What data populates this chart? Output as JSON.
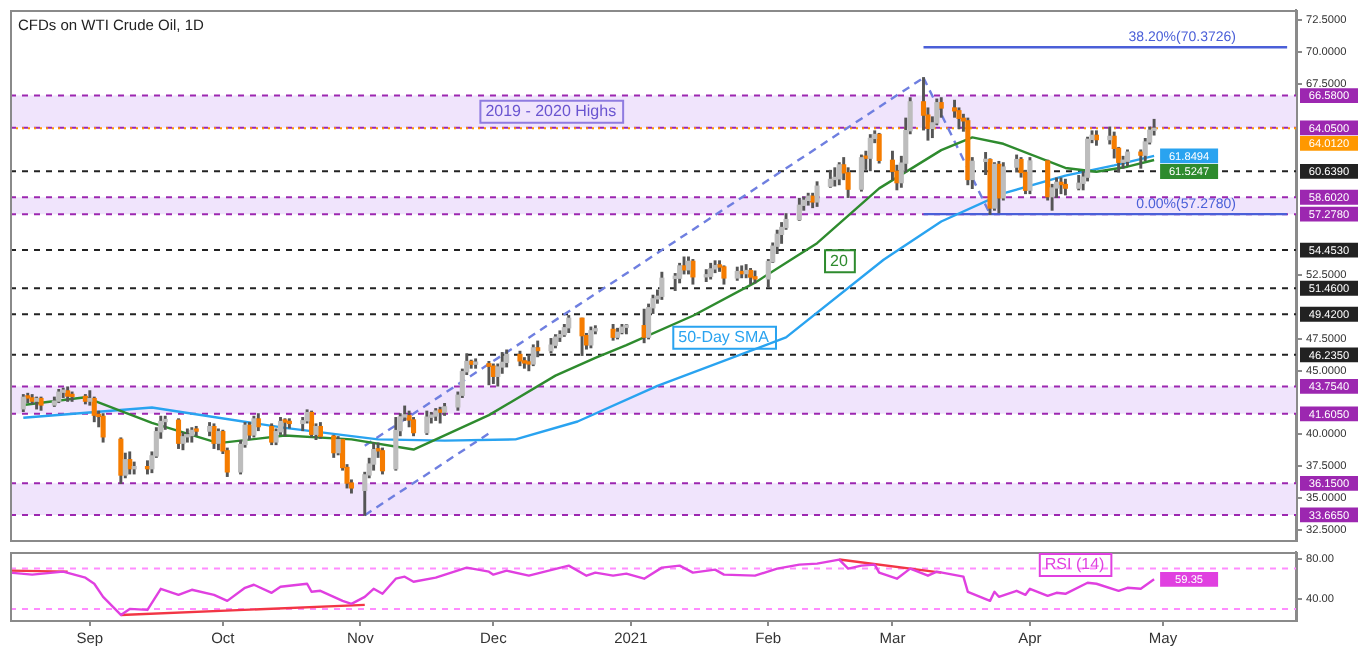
{
  "chart_data": [
    {
      "type": "candlestick",
      "title": "CFDs on WTI Crude Oil, 1D",
      "xlim": [
        "2020-08-14",
        "2021-05-31"
      ],
      "ylim": [
        31.7,
        73.3
      ],
      "tick_labels": "y",
      "grid": false,
      "legend": false,
      "marker": "none",
      "yticks": [
        {
          "value": 72.5,
          "label": "72.5000"
        },
        {
          "value": 70,
          "label": "70.0000"
        },
        {
          "value": 67.5,
          "label": "67.5000"
        },
        {
          "value": 52.5,
          "label": "52.5000"
        },
        {
          "value": 47.5,
          "label": "47.5000"
        },
        {
          "value": 45,
          "label": "45.0000"
        },
        {
          "value": 40,
          "label": "40.0000"
        },
        {
          "value": 37.5,
          "label": "37.5000"
        },
        {
          "value": 35,
          "label": "35.0000"
        },
        {
          "value": 32.5,
          "label": "32.5000"
        }
      ],
      "series": [
        {
          "color": "#bdbdbd",
          "x": [
            "2020-08-17",
            "2020-08-20",
            "2020-08-24",
            "2020-08-25",
            "2020-08-26",
            "2020-09-01",
            "2020-09-09",
            "2020-09-11",
            "2020-09-15",
            "2020-09-16",
            "2020-09-17",
            "2020-09-18",
            "2020-09-22",
            "2020-09-23",
            "2020-09-24",
            "2020-09-28",
            "2020-09-30",
            "2020-10-05",
            "2020-10-06",
            "2020-10-08",
            "2020-10-13",
            "2020-10-14",
            "2020-10-19",
            "2020-10-20",
            "2020-10-22",
            "2020-10-27",
            "2020-11-02",
            "2020-11-03",
            "2020-11-04",
            "2020-11-09",
            "2020-11-10",
            "2020-11-11",
            "2020-11-16",
            "2020-11-17",
            "2020-11-18",
            "2020-11-20",
            "2020-11-23",
            "2020-11-24",
            "2020-11-25",
            "2020-11-27",
            "2020-12-02",
            "2020-12-03",
            "2020-12-04",
            "2020-12-10",
            "2020-12-14",
            "2020-12-15",
            "2020-12-16",
            "2020-12-17",
            "2020-12-18",
            "2020-12-23",
            "2020-12-24",
            "2020-12-29",
            "2020-12-30",
            "2020-12-31",
            "2021-01-05",
            "2021-01-06",
            "2021-01-07",
            "2021-01-08",
            "2021-01-11",
            "2021-01-12",
            "2021-01-14",
            "2021-01-18",
            "2021-01-19",
            "2021-01-20",
            "2021-01-25",
            "2021-01-27",
            "2021-02-01",
            "2021-02-02",
            "2021-02-03",
            "2021-02-04",
            "2021-02-05",
            "2021-02-08",
            "2021-02-09",
            "2021-02-10",
            "2021-02-12",
            "2021-02-15",
            "2021-02-16",
            "2021-02-17",
            "2021-02-22",
            "2021-02-24",
            "2021-02-25",
            "2021-03-03",
            "2021-03-04",
            "2021-03-05",
            "2021-03-10",
            "2021-03-11",
            "2021-03-19",
            "2021-03-22",
            "2021-03-24",
            "2021-03-26",
            "2021-03-29",
            "2021-04-01",
            "2021-04-06",
            "2021-04-07",
            "2021-04-12",
            "2021-04-13",
            "2021-04-14",
            "2021-04-15",
            "2021-04-19",
            "2021-04-22",
            "2021-04-23",
            "2021-04-27",
            "2021-04-28",
            "2021-04-29"
          ],
          "ohlc": [
            [
              42.0,
              43.1,
              41.8,
              42.9
            ],
            [
              42.6,
              42.9,
              42.0,
              42.8
            ],
            [
              42.3,
              42.9,
              42.2,
              42.6
            ],
            [
              42.6,
              43.5,
              42.5,
              43.3
            ],
            [
              43.3,
              43.6,
              42.9,
              43.4
            ],
            [
              42.6,
              43.4,
              42.3,
              42.8
            ],
            [
              36.8,
              38.5,
              36.6,
              38.0
            ],
            [
              37.3,
              37.8,
              36.9,
              37.35
            ],
            [
              37.3,
              38.6,
              37.0,
              38.3
            ],
            [
              38.3,
              40.5,
              38.2,
              40.2
            ],
            [
              40.2,
              41.4,
              39.7,
              41.0
            ],
            [
              41.0,
              41.4,
              40.4,
              41.1
            ],
            [
              39.3,
              40.1,
              38.8,
              39.8
            ],
            [
              39.8,
              40.4,
              39.4,
              39.9
            ],
            [
              39.9,
              40.5,
              39.4,
              40.3
            ],
            [
              40.25,
              40.9,
              39.9,
              40.6
            ],
            [
              39.3,
              40.4,
              38.8,
              40.2
            ],
            [
              37.05,
              39.5,
              36.9,
              39.2
            ],
            [
              39.2,
              40.9,
              39.0,
              40.7
            ],
            [
              39.95,
              41.4,
              39.8,
              41.2
            ],
            [
              39.4,
              40.4,
              39.2,
              40.2
            ],
            [
              40.2,
              41.3,
              40.0,
              41.0
            ],
            [
              40.85,
              41.3,
              40.3,
              41.06
            ],
            [
              41.06,
              41.9,
              40.9,
              41.7
            ],
            [
              40.0,
              40.8,
              39.6,
              40.6
            ],
            [
              38.56,
              39.8,
              38.4,
              39.57
            ],
            [
              35.6,
              37.0,
              33.65,
              36.81
            ],
            [
              36.81,
              38.1,
              36.6,
              37.66
            ],
            [
              37.66,
              39.3,
              37.2,
              38.79
            ],
            [
              37.3,
              41.3,
              37.2,
              40.29
            ],
            [
              40.29,
              41.6,
              39.9,
              41.36
            ],
            [
              41.36,
              42.2,
              41.1,
              41.45
            ],
            [
              40.13,
              41.8,
              40.0,
              41.34
            ],
            [
              41.34,
              41.7,
              40.9,
              41.43
            ],
            [
              41.43,
              42.0,
              41.1,
              41.82
            ],
            [
              41.74,
              42.4,
              41.5,
              42.15
            ],
            [
              42.15,
              43.3,
              41.9,
              43.06
            ],
            [
              43.06,
              45.1,
              42.9,
              44.91
            ],
            [
              44.91,
              46.3,
              44.7,
              45.71
            ],
            [
              45.5,
              45.9,
              45.2,
              45.53
            ],
            [
              44.55,
              45.5,
              43.8,
              45.28
            ],
            [
              45.28,
              46.4,
              44.8,
              45.64
            ],
            [
              45.64,
              46.6,
              45.3,
              46.26
            ],
            [
              45.52,
              47.0,
              45.4,
              46.78
            ],
            [
              46.57,
              47.5,
              46.4,
              46.99
            ],
            [
              46.99,
              47.8,
              46.8,
              47.62
            ],
            [
              47.62,
              48.1,
              47.3,
              47.82
            ],
            [
              47.82,
              48.6,
              47.7,
              48.36
            ],
            [
              48.36,
              49.3,
              48.0,
              49.1
            ],
            [
              47.02,
              48.4,
              46.8,
              48.12
            ],
            [
              48.12,
              48.5,
              47.9,
              48.23
            ],
            [
              47.62,
              48.3,
              47.5,
              48.0
            ],
            [
              48.0,
              48.6,
              47.9,
              48.4
            ],
            [
              48.4,
              48.6,
              47.9,
              48.52
            ],
            [
              47.62,
              50.2,
              47.5,
              49.93
            ],
            [
              49.93,
              50.9,
              49.5,
              50.63
            ],
            [
              50.63,
              51.3,
              50.3,
              50.83
            ],
            [
              50.83,
              52.7,
              50.6,
              52.24
            ],
            [
              52.24,
              52.6,
              51.3,
              52.25
            ],
            [
              52.25,
              53.4,
              51.9,
              53.21
            ],
            [
              52.91,
              53.9,
              52.6,
              53.57
            ],
            [
              52.36,
              52.9,
              52.0,
              52.4
            ],
            [
              52.4,
              53.4,
              52.2,
              52.98
            ],
            [
              52.98,
              53.6,
              52.7,
              53.24
            ],
            [
              52.27,
              53.1,
              52.1,
              52.77
            ],
            [
              52.61,
              53.3,
              52.3,
              52.85
            ],
            [
              52.2,
              53.7,
              51.6,
              53.55
            ],
            [
              53.55,
              55.0,
              53.5,
              54.76
            ],
            [
              54.76,
              56.0,
              54.2,
              55.69
            ],
            [
              55.69,
              56.6,
              55.0,
              56.23
            ],
            [
              56.23,
              57.3,
              56.1,
              56.85
            ],
            [
              56.85,
              58.5,
              56.8,
              57.97
            ],
            [
              57.97,
              58.6,
              57.6,
              58.36
            ],
            [
              58.36,
              58.9,
              58.0,
              58.68
            ],
            [
              58.24,
              59.8,
              57.9,
              59.47
            ],
            [
              59.47,
              60.7,
              59.4,
              60.0
            ],
            [
              60.0,
              60.9,
              59.5,
              60.05
            ],
            [
              60.05,
              61.3,
              59.6,
              61.14
            ],
            [
              59.24,
              61.9,
              59.1,
              61.7
            ],
            [
              61.67,
              63.5,
              60.7,
              63.22
            ],
            [
              63.22,
              63.8,
              62.9,
              63.53
            ],
            [
              59.75,
              61.8,
              59.4,
              61.28
            ],
            [
              61.28,
              64.8,
              60.6,
              63.83
            ],
            [
              63.83,
              66.4,
              63.6,
              66.09
            ],
            [
              64.01,
              64.9,
              63.3,
              64.44
            ],
            [
              64.44,
              66.3,
              64.3,
              66.02
            ],
            [
              60.0,
              61.7,
              59.3,
              61.42
            ],
            [
              61.42,
              62.1,
              60.4,
              61.55
            ],
            [
              57.76,
              61.3,
              57.6,
              61.18
            ],
            [
              58.56,
              61.3,
              58.4,
              60.97
            ],
            [
              60.97,
              61.9,
              60.6,
              61.56
            ],
            [
              59.16,
              61.7,
              58.9,
              61.45
            ],
            [
              58.65,
              59.6,
              57.6,
              59.33
            ],
            [
              59.33,
              60.1,
              58.6,
              59.77
            ],
            [
              59.32,
              60.3,
              59.2,
              59.7
            ],
            [
              59.7,
              60.6,
              59.2,
              60.18
            ],
            [
              60.18,
              63.3,
              59.9,
              63.15
            ],
            [
              63.15,
              63.8,
              62.9,
              63.46
            ],
            [
              63.13,
              64.1,
              62.8,
              63.38
            ],
            [
              61.35,
              61.8,
              60.9,
              61.43
            ],
            [
              61.43,
              62.3,
              61.1,
              62.14
            ],
            [
              61.91,
              63.2,
              61.5,
              62.94
            ],
            [
              62.94,
              64.1,
              62.8,
              63.86
            ],
            [
              63.86,
              64.7,
              63.5,
              64.012
            ]
          ]
        },
        {
          "color": "#f57c00",
          "x": [
            "2020-08-18",
            "2020-08-19",
            "2020-08-21",
            "2020-08-27",
            "2020-08-28",
            "2020-08-31",
            "2020-09-02",
            "2020-09-03",
            "2020-09-04",
            "2020-09-08",
            "2020-09-10",
            "2020-09-14",
            "2020-09-21",
            "2020-09-25",
            "2020-09-29",
            "2020-10-01",
            "2020-10-02",
            "2020-10-07",
            "2020-10-09",
            "2020-10-12",
            "2020-10-15",
            "2020-10-16",
            "2020-10-21",
            "2020-10-23",
            "2020-10-26",
            "2020-10-28",
            "2020-10-29",
            "2020-10-30",
            "2020-11-05",
            "2020-11-06",
            "2020-11-12",
            "2020-11-13",
            "2020-11-19",
            "2020-11-26",
            "2020-11-30",
            "2020-12-01",
            "2020-12-07",
            "2020-12-08",
            "2020-12-09",
            "2020-12-11",
            "2020-12-21",
            "2020-12-22",
            "2020-12-28",
            "2021-01-04",
            "2021-01-13",
            "2021-01-15",
            "2021-01-21",
            "2021-01-22",
            "2021-01-26",
            "2021-01-28",
            "2021-01-29",
            "2021-02-11",
            "2021-02-18",
            "2021-02-19",
            "2021-02-23",
            "2021-02-26",
            "2021-03-01",
            "2021-03-02",
            "2021-03-08",
            "2021-03-09",
            "2021-03-12",
            "2021-03-15",
            "2021-03-16",
            "2021-03-17",
            "2021-03-18",
            "2021-03-23",
            "2021-03-25",
            "2021-03-30",
            "2021-03-31",
            "2021-04-05",
            "2021-04-08",
            "2021-04-09",
            "2021-04-16",
            "2021-04-20",
            "2021-04-21",
            "2021-04-26"
          ],
          "ohlc": [
            [
              42.9,
              43.2,
              42.5,
              42.85
            ],
            [
              42.85,
              43.1,
              42.4,
              42.6
            ],
            [
              42.8,
              42.9,
              41.9,
              42.3
            ],
            [
              43.4,
              43.7,
              42.6,
              43.0
            ],
            [
              43.0,
              43.3,
              42.6,
              42.97
            ],
            [
              42.97,
              43.1,
              42.4,
              42.6
            ],
            [
              42.8,
              42.9,
              41.0,
              41.5
            ],
            [
              41.5,
              41.8,
              40.6,
              41.4
            ],
            [
              41.4,
              41.6,
              39.4,
              39.8
            ],
            [
              39.6,
              39.7,
              36.15,
              36.8
            ],
            [
              38.0,
              38.6,
              36.9,
              37.3
            ],
            [
              37.35,
              37.9,
              36.9,
              37.3
            ],
            [
              41.1,
              41.2,
              38.9,
              39.3
            ],
            [
              40.3,
              40.6,
              39.9,
              40.25
            ],
            [
              40.6,
              40.8,
              38.9,
              39.3
            ],
            [
              40.2,
              40.3,
              38.5,
              38.7
            ],
            [
              38.7,
              38.9,
              36.7,
              37.05
            ],
            [
              40.7,
              40.9,
              39.6,
              39.95
            ],
            [
              41.2,
              41.6,
              40.3,
              40.6
            ],
            [
              40.6,
              40.8,
              39.2,
              39.4
            ],
            [
              41.0,
              41.2,
              39.9,
              40.96
            ],
            [
              40.96,
              41.2,
              40.5,
              40.85
            ],
            [
              41.7,
              41.8,
              39.8,
              40.0
            ],
            [
              40.6,
              40.9,
              39.7,
              39.85
            ],
            [
              39.85,
              39.9,
              38.2,
              38.56
            ],
            [
              39.57,
              39.6,
              37.2,
              37.39
            ],
            [
              37.39,
              37.6,
              35.8,
              36.17
            ],
            [
              36.17,
              36.4,
              35.4,
              35.79
            ],
            [
              38.79,
              39.3,
              38.2,
              38.7
            ],
            [
              38.7,
              38.9,
              36.9,
              37.14
            ],
            [
              41.45,
              41.8,
              40.6,
              41.12
            ],
            [
              41.12,
              41.3,
              39.9,
              40.13
            ],
            [
              41.82,
              42.1,
              40.9,
              41.74
            ],
            [
              45.71,
              45.8,
              45.2,
              45.5
            ],
            [
              45.53,
              45.7,
              43.9,
              45.34
            ],
            [
              45.34,
              45.5,
              44.0,
              44.55
            ],
            [
              46.26,
              46.5,
              45.4,
              45.76
            ],
            [
              45.76,
              46.0,
              45.2,
              45.6
            ],
            [
              45.6,
              46.2,
              45.0,
              45.52
            ],
            [
              46.78,
              47.3,
              46.1,
              46.57
            ],
            [
              49.1,
              49.1,
              46.2,
              47.74
            ],
            [
              47.74,
              47.9,
              46.7,
              47.02
            ],
            [
              48.23,
              48.6,
              47.4,
              47.62
            ],
            [
              48.52,
              49.8,
              47.2,
              47.62
            ],
            [
              53.21,
              53.9,
              52.6,
              52.91
            ],
            [
              53.57,
              53.7,
              51.8,
              52.36
            ],
            [
              53.24,
              53.6,
              52.8,
              53.13
            ],
            [
              53.13,
              53.2,
              51.8,
              52.27
            ],
            [
              52.77,
              53.2,
              52.3,
              52.61
            ],
            [
              52.85,
              53.0,
              51.8,
              52.34
            ],
            [
              52.34,
              52.8,
              51.9,
              52.2
            ],
            [
              58.68,
              58.9,
              57.8,
              58.24
            ],
            [
              61.14,
              61.7,
              60.0,
              60.52
            ],
            [
              60.52,
              60.9,
              58.6,
              59.24
            ],
            [
              61.7,
              62.2,
              60.8,
              61.67
            ],
            [
              63.53,
              63.6,
              61.3,
              61.5
            ],
            [
              61.5,
              62.2,
              60.0,
              60.64
            ],
            [
              60.64,
              61.1,
              59.2,
              59.75
            ],
            [
              66.09,
              67.98,
              63.9,
              65.05
            ],
            [
              65.05,
              65.6,
              63.1,
              64.01
            ],
            [
              66.02,
              66.4,
              64.9,
              65.61
            ],
            [
              65.61,
              66.2,
              64.9,
              65.39
            ],
            [
              65.39,
              65.6,
              64.0,
              64.8
            ],
            [
              64.8,
              65.1,
              63.8,
              64.6
            ],
            [
              64.6,
              64.8,
              59.6,
              60.0
            ],
            [
              61.55,
              61.6,
              57.28,
              57.76
            ],
            [
              61.18,
              61.4,
              57.4,
              58.56
            ],
            [
              61.56,
              61.7,
              60.2,
              60.55
            ],
            [
              60.55,
              60.7,
              58.9,
              59.16
            ],
            [
              61.45,
              61.5,
              58.4,
              58.65
            ],
            [
              59.77,
              60.1,
              58.9,
              59.6
            ],
            [
              59.6,
              60.0,
              58.8,
              59.32
            ],
            [
              63.46,
              63.8,
              62.7,
              63.13
            ],
            [
              63.38,
              63.7,
              61.7,
              62.44
            ],
            [
              62.44,
              62.5,
              60.6,
              61.35
            ],
            [
              62.14,
              62.3,
              60.9,
              61.91
            ]
          ]
        },
        {
          "type": "line",
          "name": "20",
          "color": "#2e8b2e",
          "x": [
            "2020-08-17",
            "2020-08-31",
            "2020-09-15",
            "2020-09-30",
            "2020-10-15",
            "2020-10-30",
            "2020-11-13",
            "2020-11-30",
            "2020-12-15",
            "2020-12-24",
            "2020-12-31",
            "2021-01-15",
            "2021-01-29",
            "2021-02-12",
            "2021-02-26",
            "2021-03-12",
            "2021-03-19",
            "2021-03-26",
            "2021-04-09",
            "2021-04-16",
            "2021-04-23",
            "2021-04-29"
          ],
          "values": [
            42.3,
            42.9,
            40.9,
            39.3,
            39.9,
            39.6,
            38.8,
            41.5,
            44.6,
            46.0,
            47.0,
            49.3,
            51.9,
            55.0,
            59.3,
            62.3,
            63.3,
            62.8,
            60.9,
            60.6,
            61.0,
            61.5247
          ],
          "value_labels": [
            null,
            null,
            null,
            null,
            null,
            null,
            null,
            null,
            null,
            null,
            null,
            null,
            null,
            null,
            null,
            null,
            null,
            null,
            null,
            null,
            null,
            "61.5247"
          ]
        },
        {
          "type": "line",
          "name": "50-Day SMA",
          "color": "#29a3f0",
          "x": [
            "2020-08-17",
            "2020-09-15",
            "2020-10-15",
            "2020-11-05",
            "2020-11-20",
            "2020-12-06",
            "2020-12-20",
            "2021-01-07",
            "2021-02-05",
            "2021-02-27",
            "2021-03-12",
            "2021-03-26",
            "2021-04-09",
            "2021-04-20",
            "2021-04-29"
          ],
          "values": [
            41.3,
            42.1,
            40.5,
            39.6,
            39.5,
            39.6,
            41.0,
            43.8,
            47.6,
            53.7,
            56.7,
            58.9,
            60.3,
            61.1,
            61.8494
          ],
          "value_labels": [
            null,
            null,
            null,
            null,
            null,
            null,
            null,
            null,
            null,
            null,
            null,
            null,
            null,
            null,
            "61.8494"
          ]
        },
        {
          "type": "line",
          "name": "38.20%(70.3726)",
          "color": "#4a5fd8",
          "x": [
            "2021-03-08",
            "2021-05-29"
          ],
          "values": [
            70.3726,
            70.3726
          ]
        },
        {
          "type": "line",
          "name": "0.00%(57.2780)",
          "color": "#4a5fd8",
          "x": [
            "2021-03-08",
            "2021-05-29"
          ],
          "values": [
            57.278,
            57.278
          ]
        },
        {
          "type": "line",
          "color": "#6f7fe0",
          "line_style": "dashed",
          "x": [
            "2020-11-02",
            "2021-03-08"
          ],
          "values": [
            39.1,
            67.98
          ]
        },
        {
          "type": "line",
          "color": "#6f7fe0",
          "line_style": "dashed",
          "x": [
            "2020-11-02",
            "2020-12-01"
          ],
          "values": [
            33.65,
            40.3
          ]
        },
        {
          "type": "line",
          "color": "#6f7fe0",
          "line_style": "dashed",
          "x": [
            "2021-03-08",
            "2021-03-23"
          ],
          "values": [
            67.98,
            57.28
          ]
        }
      ],
      "bands": [
        {
          "axis": "y",
          "from": 64.05,
          "to": 66.58,
          "label": "2019 - 2020 Highs",
          "color": "#f0e4fc"
        },
        {
          "axis": "y",
          "from": 57.278,
          "to": 58.602,
          "color": "#f0e4fc"
        },
        {
          "axis": "y",
          "from": 41.605,
          "to": 43.754,
          "color": "#f0e4fc"
        },
        {
          "axis": "y",
          "from": 33.665,
          "to": 36.15,
          "color": "#f0e4fc"
        }
      ],
      "ref_lines": [
        {
          "axis": "y",
          "value": 66.58,
          "label": "66.5800",
          "color": "#9c27b0",
          "line_style": "dashed"
        },
        {
          "axis": "y",
          "value": 64.05,
          "label": "64.0500",
          "color": "#9c27b0",
          "line_style": "dashed"
        },
        {
          "axis": "y",
          "value": 64.012,
          "label": "64.0120",
          "color": "#ff9800",
          "line_style": "dotted"
        },
        {
          "axis": "y",
          "value": 60.639,
          "label": "60.6390",
          "color": "#222222",
          "line_style": "dashed"
        },
        {
          "axis": "y",
          "value": 58.602,
          "label": "58.6020",
          "color": "#9c27b0",
          "line_style": "dashed"
        },
        {
          "axis": "y",
          "value": 57.278,
          "label": "57.2780",
          "color": "#9c27b0",
          "line_style": "dashed"
        },
        {
          "axis": "y",
          "value": 54.453,
          "label": "54.4530",
          "color": "#222222",
          "line_style": "dashed"
        },
        {
          "axis": "y",
          "value": 51.46,
          "label": "51.4600",
          "color": "#222222",
          "line_style": "dashed"
        },
        {
          "axis": "y",
          "value": 49.42,
          "label": "49.4200",
          "color": "#222222",
          "line_style": "dashed"
        },
        {
          "axis": "y",
          "value": 46.235,
          "label": "46.2350",
          "color": "#222222",
          "line_style": "dashed"
        },
        {
          "axis": "y",
          "value": 43.754,
          "label": "43.7540",
          "color": "#9c27b0",
          "line_style": "dashed"
        },
        {
          "axis": "y",
          "value": 41.605,
          "label": "41.6050",
          "color": "#9c27b0",
          "line_style": "dashed"
        },
        {
          "axis": "y",
          "value": 36.15,
          "label": "36.1500",
          "color": "#9c27b0",
          "line_style": "dashed"
        },
        {
          "axis": "y",
          "value": 33.665,
          "label": "33.6650",
          "color": "#9c27b0",
          "line_style": "dashed"
        }
      ]
    },
    {
      "type": "line",
      "xlim": [
        "2020-08-14",
        "2021-05-31"
      ],
      "ylim": [
        19,
        86.5
      ],
      "grid": false,
      "legend": false,
      "marker": "none",
      "xticks": [
        {
          "value": "2020-09-01",
          "label": "Sep"
        },
        {
          "value": "2020-10-01",
          "label": "Oct"
        },
        {
          "value": "2020-11-01",
          "label": "Nov"
        },
        {
          "value": "2020-12-01",
          "label": "Dec"
        },
        {
          "value": "2021-01-01",
          "label": "2021"
        },
        {
          "value": "2021-02-01",
          "label": "Feb"
        },
        {
          "value": "2021-03-01",
          "label": "Mar"
        },
        {
          "value": "2021-04-01",
          "label": "Apr"
        },
        {
          "value": "2021-05-01",
          "label": "May"
        }
      ],
      "yticks": [
        {
          "value": 80,
          "label": "80.00"
        },
        {
          "value": 40,
          "label": "40.00"
        }
      ],
      "series": [
        {
          "name": "RSI (14)",
          "color": "#e040e0",
          "x": [
            "2020-08-14",
            "2020-08-19",
            "2020-08-26",
            "2020-08-31",
            "2020-09-02",
            "2020-09-04",
            "2020-09-08",
            "2020-09-10",
            "2020-09-14",
            "2020-09-17",
            "2020-09-21",
            "2020-09-24",
            "2020-09-29",
            "2020-10-02",
            "2020-10-06",
            "2020-10-08",
            "2020-10-12",
            "2020-10-14",
            "2020-10-20",
            "2020-10-21",
            "2020-10-23",
            "2020-10-28",
            "2020-10-30",
            "2020-11-02",
            "2020-11-04",
            "2020-11-06",
            "2020-11-09",
            "2020-11-11",
            "2020-11-13",
            "2020-11-18",
            "2020-11-25",
            "2020-11-30",
            "2020-12-01",
            "2020-12-04",
            "2020-12-09",
            "2020-12-18",
            "2020-12-22",
            "2020-12-24",
            "2020-12-28",
            "2020-12-31",
            "2021-01-04",
            "2021-01-08",
            "2021-01-12",
            "2021-01-15",
            "2021-01-20",
            "2021-01-22",
            "2021-01-29",
            "2021-02-03",
            "2021-02-08",
            "2021-02-12",
            "2021-02-17",
            "2021-02-19",
            "2021-02-22",
            "2021-02-25",
            "2021-02-26",
            "2021-03-02",
            "2021-03-05",
            "2021-03-09",
            "2021-03-11",
            "2021-03-17",
            "2021-03-18",
            "2021-03-23",
            "2021-03-24",
            "2021-03-25",
            "2021-03-29",
            "2021-03-31",
            "2021-04-01",
            "2021-04-05",
            "2021-04-07",
            "2021-04-09",
            "2021-04-14",
            "2021-04-16",
            "2021-04-21",
            "2021-04-23",
            "2021-04-26",
            "2021-04-29"
          ],
          "values": [
            66,
            64,
            67,
            61,
            55,
            42,
            24,
            30,
            29,
            50,
            44,
            49,
            44,
            38,
            51,
            54,
            46,
            52,
            55,
            47,
            48,
            38,
            35,
            42,
            50,
            45,
            60,
            62,
            57,
            61,
            71,
            67,
            64,
            68,
            63,
            73,
            63,
            66,
            63,
            65,
            60,
            71,
            73,
            66,
            69,
            64,
            63,
            70,
            74,
            75,
            79,
            70,
            73,
            74,
            66,
            60,
            70,
            63,
            67,
            62,
            47,
            38,
            47,
            42,
            48,
            44,
            50,
            43,
            46,
            45,
            56,
            55,
            48,
            51,
            50,
            59.35
          ],
          "value_labels": [
            null,
            null,
            null,
            null,
            null,
            null,
            null,
            null,
            null,
            null,
            null,
            null,
            null,
            null,
            null,
            null,
            null,
            null,
            null,
            null,
            null,
            null,
            null,
            null,
            null,
            null,
            null,
            null,
            null,
            null,
            null,
            null,
            null,
            null,
            null,
            null,
            null,
            null,
            null,
            null,
            null,
            null,
            null,
            null,
            null,
            null,
            null,
            null,
            null,
            null,
            null,
            null,
            null,
            null,
            null,
            null,
            null,
            null,
            null,
            null,
            null,
            null,
            null,
            null,
            null,
            null,
            null,
            null,
            null,
            null,
            null,
            null,
            null,
            null,
            null,
            "59.35"
          ]
        },
        {
          "type": "line",
          "color": "#f23645",
          "x": [
            "2020-08-14",
            "2020-08-27"
          ],
          "values": [
            68,
            67
          ]
        },
        {
          "type": "line",
          "color": "#f23645",
          "x": [
            "2020-09-08",
            "2020-11-02"
          ],
          "values": [
            24,
            34
          ]
        },
        {
          "type": "line",
          "color": "#f23645",
          "x": [
            "2021-02-17",
            "2021-03-12"
          ],
          "values": [
            79,
            66
          ]
        }
      ],
      "ref_lines": [
        {
          "axis": "y",
          "value": 70,
          "color": "#ff8cff",
          "line_style": "dashed"
        },
        {
          "axis": "y",
          "value": 30,
          "color": "#ff8cff",
          "line_style": "dashed"
        }
      ]
    }
  ]
}
